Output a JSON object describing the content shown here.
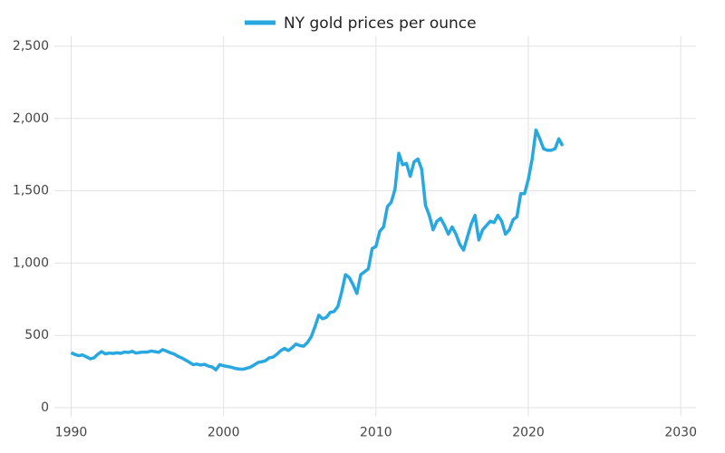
{
  "chart_data": {
    "type": "line",
    "series": [
      {
        "name": "NY gold prices per ounce",
        "color": "#29a8e0",
        "values": [
          380,
          368,
          360,
          365,
          352,
          338,
          345,
          370,
          388,
          372,
          378,
          375,
          380,
          376,
          385,
          382,
          390,
          378,
          382,
          385,
          385,
          392,
          388,
          383,
          402,
          392,
          380,
          372,
          356,
          345,
          330,
          315,
          298,
          302,
          295,
          300,
          288,
          282,
          262,
          298,
          290,
          285,
          280,
          272,
          268,
          266,
          272,
          280,
          295,
          312,
          318,
          325,
          345,
          350,
          370,
          395,
          410,
          395,
          415,
          440,
          430,
          425,
          450,
          490,
          560,
          640,
          615,
          625,
          660,
          665,
          700,
          800,
          920,
          900,
          850,
          790,
          920,
          940,
          960,
          1100,
          1115,
          1220,
          1250,
          1390,
          1420,
          1510,
          1760,
          1680,
          1690,
          1600,
          1700,
          1720,
          1650,
          1400,
          1330,
          1230,
          1290,
          1310,
          1260,
          1200,
          1250,
          1200,
          1130,
          1090,
          1180,
          1270,
          1330,
          1160,
          1230,
          1260,
          1290,
          1280,
          1330,
          1290,
          1200,
          1230,
          1300,
          1320,
          1480,
          1480,
          1580,
          1720,
          1920,
          1860,
          1790,
          1780,
          1780,
          1790,
          1860,
          1810
        ]
      }
    ],
    "x": [
      1990,
      1990.25,
      1990.5,
      1990.75,
      1991,
      1991.25,
      1991.5,
      1991.75,
      1992,
      1992.25,
      1992.5,
      1992.75,
      1993,
      1993.25,
      1993.5,
      1993.75,
      1994,
      1994.25,
      1994.5,
      1994.75,
      1995,
      1995.25,
      1995.5,
      1995.75,
      1996,
      1996.25,
      1996.5,
      1996.75,
      1997,
      1997.25,
      1997.5,
      1997.75,
      1998,
      1998.25,
      1998.5,
      1998.75,
      1999,
      1999.25,
      1999.5,
      1999.75,
      2000,
      2000.25,
      2000.5,
      2000.75,
      2001,
      2001.25,
      2001.5,
      2001.75,
      2002,
      2002.25,
      2002.5,
      2002.75,
      2003,
      2003.25,
      2003.5,
      2003.75,
      2004,
      2004.25,
      2004.5,
      2004.75,
      2005,
      2005.25,
      2005.5,
      2005.75,
      2006,
      2006.25,
      2006.5,
      2006.75,
      2007,
      2007.25,
      2007.5,
      2007.75,
      2008,
      2008.25,
      2008.5,
      2008.75,
      2009,
      2009.25,
      2009.5,
      2009.75,
      2010,
      2010.25,
      2010.5,
      2010.75,
      2011,
      2011.25,
      2011.5,
      2011.75,
      2012,
      2012.25,
      2012.5,
      2012.75,
      2013,
      2013.25,
      2013.5,
      2013.75,
      2014,
      2014.25,
      2014.5,
      2014.75,
      2015,
      2015.25,
      2015.5,
      2015.75,
      2016,
      2016.25,
      2016.5,
      2016.75,
      2017,
      2017.25,
      2017.5,
      2017.75,
      2018,
      2018.25,
      2018.5,
      2018.75,
      2019,
      2019.25,
      2019.5,
      2019.75,
      2020,
      2020.25,
      2020.5,
      2020.75,
      2021,
      2021.25,
      2021.5,
      2021.75,
      2022,
      2022.25
    ],
    "xlim": [
      1988.9,
      2031
    ],
    "xticks": [
      1990,
      2000,
      2010,
      2020,
      2030
    ],
    "ylim": [
      -60,
      2570
    ],
    "yticks": [
      0,
      500,
      {
        "value": 1000,
        "label": "1,000"
      },
      {
        "value": 1500,
        "label": "1,500"
      },
      {
        "value": 2000,
        "label": "2,000"
      },
      {
        "value": 2500,
        "label": "2,500"
      }
    ],
    "grid": true,
    "legend": "top"
  }
}
